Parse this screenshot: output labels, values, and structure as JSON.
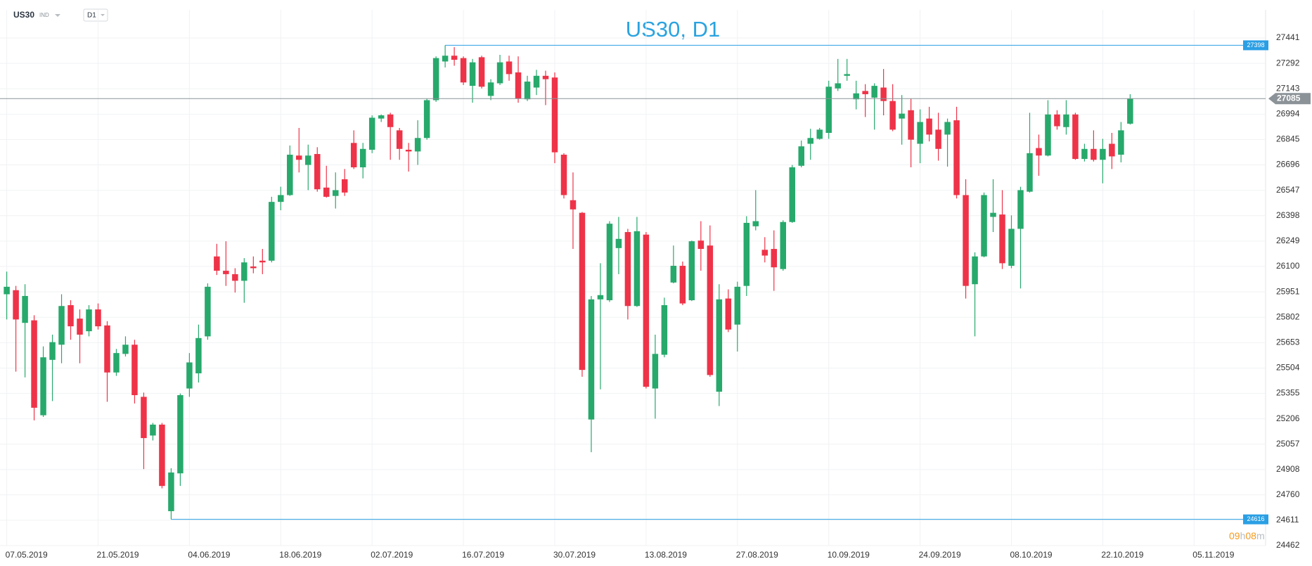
{
  "chart_data": {
    "type": "candlestick",
    "title": "US30, D1",
    "symbol": "US30",
    "market": "IND",
    "timeframe": "D1",
    "countdown": [
      "09",
      "h",
      "08",
      "m"
    ],
    "up_color": "#27a96c",
    "down_color": "#ee3348",
    "level_color": "#2a9fe4",
    "last_price_color": "#8c9398",
    "grid": true,
    "ylim": [
      24462,
      27441
    ],
    "yticks": [
      27441,
      27292,
      27143,
      26994,
      26845,
      26696,
      26547,
      26398,
      26249,
      26100,
      25951,
      25802,
      25653,
      25504,
      25355,
      25206,
      25057,
      24908,
      24760,
      24611,
      24462
    ],
    "categories": [
      "07.05.2019",
      null,
      null,
      null,
      null,
      null,
      null,
      null,
      null,
      null,
      "21.05.2019",
      null,
      null,
      null,
      null,
      null,
      null,
      null,
      null,
      null,
      "04.06.2019",
      null,
      null,
      null,
      null,
      null,
      null,
      null,
      null,
      null,
      "18.06.2019",
      null,
      null,
      null,
      null,
      null,
      null,
      null,
      null,
      null,
      "02.07.2019",
      null,
      null,
      null,
      null,
      null,
      null,
      null,
      null,
      null,
      "16.07.2019",
      null,
      null,
      null,
      null,
      null,
      null,
      null,
      null,
      null,
      "30.07.2019",
      null,
      null,
      null,
      null,
      null,
      null,
      null,
      null,
      null,
      "13.08.2019",
      null,
      null,
      null,
      null,
      null,
      null,
      null,
      null,
      null,
      "27.08.2019",
      null,
      null,
      null,
      null,
      null,
      null,
      null,
      null,
      null,
      "10.09.2019",
      null,
      null,
      null,
      null,
      null,
      null,
      null,
      null,
      null,
      "24.09.2019",
      null,
      null,
      null,
      null,
      null,
      null,
      null,
      null,
      null,
      "08.10.2019",
      null,
      null,
      null,
      null,
      null,
      null,
      null,
      null,
      null,
      "22.10.2019",
      null,
      null,
      null,
      null,
      null,
      null,
      null,
      null,
      null,
      "05.11.2019"
    ],
    "open": [
      25937,
      25961,
      25769,
      25784,
      25227,
      25552,
      25641,
      25873,
      25794,
      25720,
      25848,
      25754,
      25478,
      25587,
      25641,
      25335,
      25108,
      25172,
      24664,
      24886,
      25384,
      25473,
      25690,
      26159,
      26075,
      26055,
      26016,
      26100,
      26134,
      26134,
      26479,
      26519,
      26751,
      26696,
      26760,
      26563,
      26514,
      26612,
      26825,
      26682,
      26785,
      26968,
      26992,
      26899,
      26785,
      26775,
      26854,
      27076,
      27303,
      27337,
      27323,
      27160,
      27328,
      27101,
      27175,
      27303,
      27239,
      27081,
      27150,
      27219,
      27209,
      26756,
      26489,
      26415,
      25202,
      25907,
      25902,
      26208,
      26302,
      25868,
      26287,
      25384,
      25582,
      26006,
      26104,
      25902,
      26252,
      26223,
      25365,
      25912,
      25759,
      25986,
      26336,
      26198,
      26203,
      26085,
      26361,
      26691,
      26820,
      26849,
      26884,
      27145,
      27219,
      27081,
      27130,
      27091,
      27150,
      27071,
      26968,
      27017,
      26820,
      26968,
      26903,
      26874,
      26958,
      26519,
      25996,
      26159,
      26391,
      26405,
      26104,
      26321,
      26539,
      26795,
      26751,
      26992,
      26918,
      26992,
      26731,
      26790,
      26726,
      26820,
      26756,
      26938,
      null,
      null,
      null,
      null,
      null,
      null,
      null
    ],
    "high": [
      26070,
      25986,
      25996,
      25814,
      25631,
      25700,
      25937,
      25902,
      25848,
      25873,
      25883,
      25779,
      25616,
      25690,
      25670,
      25360,
      25182,
      25182,
      24916,
      25355,
      25592,
      25759,
      26001,
      26233,
      26248,
      26090,
      26149,
      26159,
      26203,
      26509,
      26568,
      26810,
      26913,
      26815,
      26800,
      26691,
      26652,
      26672,
      26899,
      26825,
      26987,
      26992,
      27002,
      26913,
      26825,
      26958,
      27086,
      27333,
      27398,
      27387,
      27333,
      27318,
      27337,
      27199,
      27342,
      27337,
      27333,
      27219,
      27254,
      27249,
      27239,
      26765,
      26652,
      26420,
      25927,
      26119,
      26366,
      26391,
      26321,
      26391,
      26302,
      25700,
      25917,
      26223,
      26129,
      26252,
      26366,
      26341,
      25996,
      25966,
      26011,
      26395,
      26548,
      26272,
      26312,
      26371,
      26696,
      26839,
      26908,
      26913,
      27190,
      27318,
      27318,
      27190,
      27170,
      27175,
      27259,
      27170,
      27106,
      27086,
      27022,
      27037,
      27002,
      26968,
      27037,
      26612,
      26183,
      26534,
      26612,
      26548,
      26400,
      26568,
      27002,
      26874,
      27076,
      27017,
      27076,
      27002,
      26820,
      26899,
      26849,
      26884,
      26948,
      27111,
      null,
      null,
      null,
      null,
      null,
      null,
      null
    ],
    "low": [
      25789,
      25483,
      25449,
      25197,
      25217,
      25310,
      25532,
      25670,
      25532,
      25690,
      25730,
      25306,
      25458,
      25572,
      25296,
      24911,
      25079,
      24798,
      24616,
      24812,
      25335,
      25419,
      25670,
      26050,
      25986,
      25947,
      25887,
      26060,
      26055,
      26124,
      26430,
      26514,
      26652,
      26548,
      26539,
      26504,
      26440,
      26514,
      26672,
      26617,
      26765,
      26948,
      26726,
      26726,
      26657,
      26696,
      26844,
      27066,
      27268,
      27278,
      27165,
      27061,
      27145,
      27076,
      27165,
      27190,
      27061,
      27071,
      27106,
      27047,
      26706,
      26499,
      26203,
      25453,
      25010,
      25379,
      25892,
      26055,
      25789,
      25863,
      25384,
      25207,
      25567,
      26001,
      25873,
      25897,
      26075,
      25453,
      25281,
      25715,
      25601,
      25927,
      26312,
      26124,
      25957,
      26075,
      26356,
      26682,
      26726,
      26844,
      26849,
      27130,
      27190,
      27022,
      26977,
      26903,
      26987,
      26894,
      26815,
      26682,
      26706,
      26834,
      26721,
      26686,
      26499,
      25912,
      25690,
      26154,
      26302,
      26085,
      26090,
      25971,
      26534,
      26632,
      26746,
      26903,
      26874,
      26726,
      26716,
      26716,
      26588,
      26672,
      26711,
      26933,
      null,
      null,
      null,
      null,
      null,
      null,
      null
    ],
    "close": [
      25981,
      25789,
      25927,
      25271,
      25567,
      25656,
      25868,
      25749,
      25700,
      25848,
      25749,
      25478,
      25592,
      25641,
      25345,
      25093,
      25172,
      24812,
      24891,
      25345,
      25537,
      25680,
      25981,
      26075,
      26055,
      26016,
      26124,
      26090,
      26124,
      26479,
      26519,
      26756,
      26726,
      26751,
      26553,
      26509,
      26548,
      26534,
      26682,
      26790,
      26973,
      26987,
      26918,
      26790,
      26775,
      26854,
      27076,
      27323,
      27337,
      27313,
      27180,
      27298,
      27155,
      27180,
      27298,
      27229,
      27086,
      27185,
      27219,
      27199,
      26770,
      26519,
      26435,
      25493,
      25907,
      25932,
      26351,
      26262,
      25868,
      26307,
      25394,
      25587,
      25873,
      26104,
      25883,
      26248,
      26203,
      25463,
      25907,
      25730,
      25981,
      26356,
      26366,
      26164,
      26095,
      26361,
      26682,
      26805,
      26854,
      26903,
      27155,
      27175,
      27229,
      27116,
      27111,
      27160,
      27071,
      26903,
      26997,
      26844,
      26948,
      26874,
      26790,
      26948,
      26519,
      25986,
      26159,
      26519,
      26415,
      26119,
      26321,
      26548,
      26765,
      26751,
      26992,
      26923,
      26992,
      26731,
      26790,
      26726,
      26790,
      26746,
      26899,
      27085,
      null,
      null,
      null,
      null,
      null,
      null,
      null
    ]
  }
}
